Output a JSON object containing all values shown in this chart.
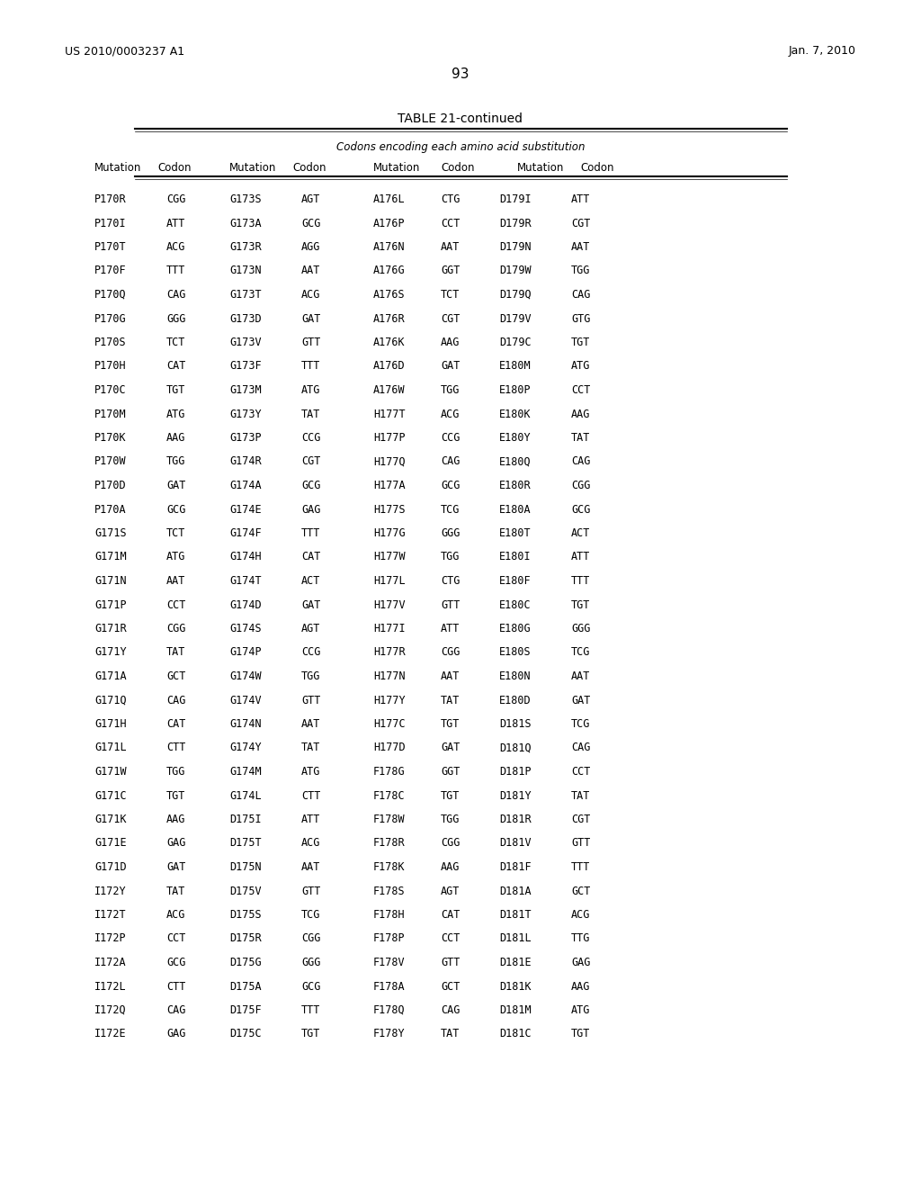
{
  "patent_left": "US 2010/0003237 A1",
  "patent_right": "Jan. 7, 2010",
  "page_number": "93",
  "table_title": "TABLE 21-continued",
  "subtitle": "Codons encoding each amino acid substitution",
  "col_headers": [
    "Mutation",
    "Codon",
    "Mutation",
    "Codon",
    "Mutation",
    "Codon",
    "Mutation",
    "Codon"
  ],
  "rows": [
    [
      "P170R",
      "CGG",
      "G173S",
      "AGT",
      "A176L",
      "CTG",
      "D179I",
      "ATT"
    ],
    [
      "P170I",
      "ATT",
      "G173A",
      "GCG",
      "A176P",
      "CCT",
      "D179R",
      "CGT"
    ],
    [
      "P170T",
      "ACG",
      "G173R",
      "AGG",
      "A176N",
      "AAT",
      "D179N",
      "AAT"
    ],
    [
      "P170F",
      "TTT",
      "G173N",
      "AAT",
      "A176G",
      "GGT",
      "D179W",
      "TGG"
    ],
    [
      "P170Q",
      "CAG",
      "G173T",
      "ACG",
      "A176S",
      "TCT",
      "D179Q",
      "CAG"
    ],
    [
      "P170G",
      "GGG",
      "G173D",
      "GAT",
      "A176R",
      "CGT",
      "D179V",
      "GTG"
    ],
    [
      "P170S",
      "TCT",
      "G173V",
      "GTT",
      "A176K",
      "AAG",
      "D179C",
      "TGT"
    ],
    [
      "P170H",
      "CAT",
      "G173F",
      "TTT",
      "A176D",
      "GAT",
      "E180M",
      "ATG"
    ],
    [
      "P170C",
      "TGT",
      "G173M",
      "ATG",
      "A176W",
      "TGG",
      "E180P",
      "CCT"
    ],
    [
      "P170M",
      "ATG",
      "G173Y",
      "TAT",
      "H177T",
      "ACG",
      "E180K",
      "AAG"
    ],
    [
      "P170K",
      "AAG",
      "G173P",
      "CCG",
      "H177P",
      "CCG",
      "E180Y",
      "TAT"
    ],
    [
      "P170W",
      "TGG",
      "G174R",
      "CGT",
      "H177Q",
      "CAG",
      "E180Q",
      "CAG"
    ],
    [
      "P170D",
      "GAT",
      "G174A",
      "GCG",
      "H177A",
      "GCG",
      "E180R",
      "CGG"
    ],
    [
      "P170A",
      "GCG",
      "G174E",
      "GAG",
      "H177S",
      "TCG",
      "E180A",
      "GCG"
    ],
    [
      "G171S",
      "TCT",
      "G174F",
      "TTT",
      "H177G",
      "GGG",
      "E180T",
      "ACT"
    ],
    [
      "G171M",
      "ATG",
      "G174H",
      "CAT",
      "H177W",
      "TGG",
      "E180I",
      "ATT"
    ],
    [
      "G171N",
      "AAT",
      "G174T",
      "ACT",
      "H177L",
      "CTG",
      "E180F",
      "TTT"
    ],
    [
      "G171P",
      "CCT",
      "G174D",
      "GAT",
      "H177V",
      "GTT",
      "E180C",
      "TGT"
    ],
    [
      "G171R",
      "CGG",
      "G174S",
      "AGT",
      "H177I",
      "ATT",
      "E180G",
      "GGG"
    ],
    [
      "G171Y",
      "TAT",
      "G174P",
      "CCG",
      "H177R",
      "CGG",
      "E180S",
      "TCG"
    ],
    [
      "G171A",
      "GCT",
      "G174W",
      "TGG",
      "H177N",
      "AAT",
      "E180N",
      "AAT"
    ],
    [
      "G171Q",
      "CAG",
      "G174V",
      "GTT",
      "H177Y",
      "TAT",
      "E180D",
      "GAT"
    ],
    [
      "G171H",
      "CAT",
      "G174N",
      "AAT",
      "H177C",
      "TGT",
      "D181S",
      "TCG"
    ],
    [
      "G171L",
      "CTT",
      "G174Y",
      "TAT",
      "H177D",
      "GAT",
      "D181Q",
      "CAG"
    ],
    [
      "G171W",
      "TGG",
      "G174M",
      "ATG",
      "F178G",
      "GGT",
      "D181P",
      "CCT"
    ],
    [
      "G171C",
      "TGT",
      "G174L",
      "CTT",
      "F178C",
      "TGT",
      "D181Y",
      "TAT"
    ],
    [
      "G171K",
      "AAG",
      "D175I",
      "ATT",
      "F178W",
      "TGG",
      "D181R",
      "CGT"
    ],
    [
      "G171E",
      "GAG",
      "D175T",
      "ACG",
      "F178R",
      "CGG",
      "D181V",
      "GTT"
    ],
    [
      "G171D",
      "GAT",
      "D175N",
      "AAT",
      "F178K",
      "AAG",
      "D181F",
      "TTT"
    ],
    [
      "I172Y",
      "TAT",
      "D175V",
      "GTT",
      "F178S",
      "AGT",
      "D181A",
      "GCT"
    ],
    [
      "I172T",
      "ACG",
      "D175S",
      "TCG",
      "F178H",
      "CAT",
      "D181T",
      "ACG"
    ],
    [
      "I172P",
      "CCT",
      "D175R",
      "CGG",
      "F178P",
      "CCT",
      "D181L",
      "TTG"
    ],
    [
      "I172A",
      "GCG",
      "D175G",
      "GGG",
      "F178V",
      "GTT",
      "D181E",
      "GAG"
    ],
    [
      "I172L",
      "CTT",
      "D175A",
      "GCG",
      "F178A",
      "GCT",
      "D181K",
      "AAG"
    ],
    [
      "I172Q",
      "CAG",
      "D175F",
      "TTT",
      "F178Q",
      "CAG",
      "D181M",
      "ATG"
    ],
    [
      "I172E",
      "GAG",
      "D175C",
      "TGT",
      "F178Y",
      "TAT",
      "D181C",
      "TGT"
    ]
  ],
  "background_color": "#ffffff",
  "text_color": "#000000",
  "font_size": 8.5,
  "header_font_size": 8.5,
  "title_font_size": 10,
  "mono_font": "DejaVu Sans Mono"
}
